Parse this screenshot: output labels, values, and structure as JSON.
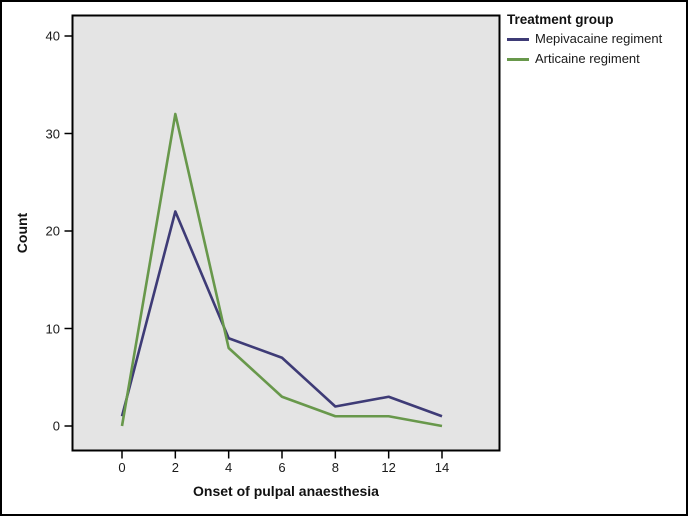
{
  "chart_data": {
    "type": "line",
    "categories": [
      "0",
      "2",
      "4",
      "6",
      "8",
      "12",
      "14"
    ],
    "series": [
      {
        "name": "Mepivacaine regiment",
        "color": "#3e3b76",
        "values": [
          1,
          22,
          9,
          7,
          2,
          3,
          1
        ]
      },
      {
        "name": "Articaine regiment",
        "color": "#68984b",
        "values": [
          0,
          32,
          8,
          3,
          1,
          1,
          0
        ]
      }
    ],
    "title": "",
    "xlabel": "Onset of pulpal anaesthesia",
    "ylabel": "Count",
    "ylim": [
      0,
      40
    ],
    "yticks": [
      0,
      10,
      20,
      30,
      40
    ],
    "legend_title": "Treatment group",
    "legend_position": "top-right",
    "grid": false,
    "plot_bg": "#e4e4e4",
    "frame_color": "#000000"
  }
}
